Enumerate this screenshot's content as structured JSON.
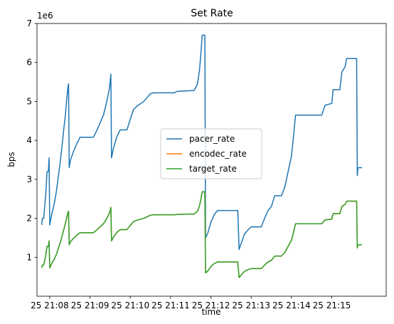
{
  "chart_data": {
    "type": "line",
    "title": "Set Rate",
    "xlabel": "time",
    "ylabel": "bps",
    "y_multiplier_label": "1e6",
    "ylim": [
      0,
      7
    ],
    "y_ticks": [
      1,
      2,
      3,
      4,
      5,
      6,
      7
    ],
    "y_tick_labels": [
      "1",
      "2",
      "3",
      "4",
      "5",
      "6",
      "7"
    ],
    "xlim": [
      "21:07:41",
      "21:16:21"
    ],
    "x_ticks": [
      "21:08",
      "21:09",
      "21:10",
      "21:11",
      "21:12",
      "21:13",
      "21:14",
      "21:15"
    ],
    "x_tick_labels": [
      "25 21:08",
      "25 21:09",
      "25 21:10",
      "25 21:11",
      "25 21:12",
      "25 21:13",
      "25 21:14",
      "25 21:15"
    ],
    "grid": false,
    "legend_position": "center",
    "series": [
      {
        "name": "pacer_rate",
        "color": "#1f77b4",
        "points": [
          [
            "21:07:48",
            1.83
          ],
          [
            "21:07:49",
            2.0
          ],
          [
            "21:07:51",
            2.0
          ],
          [
            "21:07:52",
            2.2
          ],
          [
            "21:07:54",
            2.6
          ],
          [
            "21:07:56",
            3.2
          ],
          [
            "21:07:58",
            3.2
          ],
          [
            "21:07:59",
            3.55
          ],
          [
            "21:08:00",
            1.83
          ],
          [
            "21:08:03",
            2.1
          ],
          [
            "21:08:07",
            2.4
          ],
          [
            "21:08:10",
            2.7
          ],
          [
            "21:08:13",
            3.1
          ],
          [
            "21:08:16",
            3.5
          ],
          [
            "21:08:18",
            3.8
          ],
          [
            "21:08:21",
            4.3
          ],
          [
            "21:08:23",
            4.6
          ],
          [
            "21:08:25",
            5.0
          ],
          [
            "21:08:27",
            5.35
          ],
          [
            "21:08:28",
            5.45
          ],
          [
            "21:08:29",
            3.3
          ],
          [
            "21:08:31",
            3.5
          ],
          [
            "21:08:35",
            3.7
          ],
          [
            "21:08:40",
            3.9
          ],
          [
            "21:08:45",
            4.08
          ],
          [
            "21:09:05",
            4.08
          ],
          [
            "21:09:10",
            4.25
          ],
          [
            "21:09:15",
            4.45
          ],
          [
            "21:09:20",
            4.65
          ],
          [
            "21:09:25",
            5.0
          ],
          [
            "21:09:29",
            5.35
          ],
          [
            "21:09:31",
            5.7
          ],
          [
            "21:09:32",
            3.55
          ],
          [
            "21:09:35",
            3.8
          ],
          [
            "21:09:40",
            4.1
          ],
          [
            "21:09:45",
            4.27
          ],
          [
            "21:09:55",
            4.27
          ],
          [
            "21:10:00",
            4.55
          ],
          [
            "21:10:05",
            4.8
          ],
          [
            "21:10:10",
            4.88
          ],
          [
            "21:10:20",
            5.0
          ],
          [
            "21:10:30",
            5.2
          ],
          [
            "21:10:35",
            5.22
          ],
          [
            "21:11:05",
            5.22
          ],
          [
            "21:11:10",
            5.26
          ],
          [
            "21:11:35",
            5.28
          ],
          [
            "21:11:40",
            5.45
          ],
          [
            "21:11:43",
            5.8
          ],
          [
            "21:11:45",
            6.2
          ],
          [
            "21:11:47",
            6.7
          ],
          [
            "21:11:51",
            6.7
          ],
          [
            "21:11:52",
            1.5
          ],
          [
            "21:11:55",
            1.6
          ],
          [
            "21:12:00",
            1.9
          ],
          [
            "21:12:05",
            2.1
          ],
          [
            "21:12:10",
            2.2
          ],
          [
            "21:12:40",
            2.2
          ],
          [
            "21:12:42",
            1.2
          ],
          [
            "21:12:45",
            1.35
          ],
          [
            "21:12:50",
            1.6
          ],
          [
            "21:12:55",
            1.7
          ],
          [
            "21:13:00",
            1.78
          ],
          [
            "21:13:15",
            1.78
          ],
          [
            "21:13:20",
            2.0
          ],
          [
            "21:13:25",
            2.2
          ],
          [
            "21:13:30",
            2.3
          ],
          [
            "21:13:35",
            2.58
          ],
          [
            "21:13:45",
            2.58
          ],
          [
            "21:13:50",
            2.8
          ],
          [
            "21:13:55",
            3.2
          ],
          [
            "21:14:00",
            3.6
          ],
          [
            "21:14:03",
            4.1
          ],
          [
            "21:14:06",
            4.65
          ],
          [
            "21:14:45",
            4.65
          ],
          [
            "21:14:50",
            4.9
          ],
          [
            "21:15:00",
            4.95
          ],
          [
            "21:15:02",
            5.3
          ],
          [
            "21:15:12",
            5.3
          ],
          [
            "21:15:15",
            5.75
          ],
          [
            "21:15:20",
            5.9
          ],
          [
            "21:15:22",
            6.1
          ],
          [
            "21:15:37",
            6.1
          ],
          [
            "21:15:38",
            3.1
          ],
          [
            "21:15:39",
            3.3
          ],
          [
            "21:15:45",
            3.3
          ]
        ]
      },
      {
        "name": "encodec_rate",
        "color": "#ff7f0e",
        "points": [
          [
            "21:07:48",
            0.73
          ],
          [
            "21:07:49",
            0.8
          ],
          [
            "21:07:51",
            0.8
          ],
          [
            "21:07:52",
            0.88
          ],
          [
            "21:07:54",
            1.04
          ],
          [
            "21:07:56",
            1.28
          ],
          [
            "21:07:58",
            1.28
          ],
          [
            "21:07:59",
            1.42
          ],
          [
            "21:08:00",
            0.73
          ],
          [
            "21:08:03",
            0.84
          ],
          [
            "21:08:07",
            0.96
          ],
          [
            "21:08:10",
            1.08
          ],
          [
            "21:08:13",
            1.24
          ],
          [
            "21:08:16",
            1.4
          ],
          [
            "21:08:18",
            1.52
          ],
          [
            "21:08:21",
            1.72
          ],
          [
            "21:08:23",
            1.84
          ],
          [
            "21:08:25",
            2.0
          ],
          [
            "21:08:27",
            2.14
          ],
          [
            "21:08:28",
            2.18
          ],
          [
            "21:08:29",
            1.32
          ],
          [
            "21:08:31",
            1.4
          ],
          [
            "21:08:35",
            1.48
          ],
          [
            "21:08:40",
            1.56
          ],
          [
            "21:08:45",
            1.63
          ],
          [
            "21:09:05",
            1.63
          ],
          [
            "21:09:10",
            1.7
          ],
          [
            "21:09:15",
            1.78
          ],
          [
            "21:09:20",
            1.86
          ],
          [
            "21:09:25",
            2.0
          ],
          [
            "21:09:29",
            2.14
          ],
          [
            "21:09:31",
            2.28
          ],
          [
            "21:09:32",
            1.42
          ],
          [
            "21:09:35",
            1.52
          ],
          [
            "21:09:40",
            1.64
          ],
          [
            "21:09:45",
            1.71
          ],
          [
            "21:09:55",
            1.71
          ],
          [
            "21:10:00",
            1.82
          ],
          [
            "21:10:05",
            1.92
          ],
          [
            "21:10:10",
            1.95
          ],
          [
            "21:10:20",
            2.0
          ],
          [
            "21:10:30",
            2.08
          ],
          [
            "21:10:35",
            2.09
          ],
          [
            "21:11:05",
            2.09
          ],
          [
            "21:11:10",
            2.1
          ],
          [
            "21:11:35",
            2.11
          ],
          [
            "21:11:40",
            2.18
          ],
          [
            "21:11:43",
            2.32
          ],
          [
            "21:11:45",
            2.48
          ],
          [
            "21:11:47",
            2.68
          ],
          [
            "21:11:51",
            2.68
          ],
          [
            "21:11:52",
            0.6
          ],
          [
            "21:11:55",
            0.64
          ],
          [
            "21:12:00",
            0.76
          ],
          [
            "21:12:05",
            0.84
          ],
          [
            "21:12:10",
            0.88
          ],
          [
            "21:12:40",
            0.88
          ],
          [
            "21:12:42",
            0.48
          ],
          [
            "21:12:45",
            0.54
          ],
          [
            "21:12:50",
            0.64
          ],
          [
            "21:12:55",
            0.68
          ],
          [
            "21:13:00",
            0.71
          ],
          [
            "21:13:15",
            0.71
          ],
          [
            "21:13:20",
            0.8
          ],
          [
            "21:13:25",
            0.88
          ],
          [
            "21:13:30",
            0.92
          ],
          [
            "21:13:35",
            1.03
          ],
          [
            "21:13:45",
            1.03
          ],
          [
            "21:13:50",
            1.12
          ],
          [
            "21:13:55",
            1.28
          ],
          [
            "21:14:00",
            1.44
          ],
          [
            "21:14:03",
            1.64
          ],
          [
            "21:14:06",
            1.86
          ],
          [
            "21:14:45",
            1.86
          ],
          [
            "21:14:50",
            1.96
          ],
          [
            "21:15:00",
            1.98
          ],
          [
            "21:15:02",
            2.12
          ],
          [
            "21:15:12",
            2.12
          ],
          [
            "21:15:15",
            2.3
          ],
          [
            "21:15:20",
            2.36
          ],
          [
            "21:15:22",
            2.44
          ],
          [
            "21:15:37",
            2.44
          ],
          [
            "21:15:38",
            1.24
          ],
          [
            "21:15:39",
            1.32
          ],
          [
            "21:15:45",
            1.32
          ]
        ]
      },
      {
        "name": "target_rate",
        "color": "#2ca02c",
        "points": [
          [
            "21:07:48",
            0.73
          ],
          [
            "21:07:49",
            0.8
          ],
          [
            "21:07:51",
            0.8
          ],
          [
            "21:07:52",
            0.88
          ],
          [
            "21:07:54",
            1.04
          ],
          [
            "21:07:56",
            1.28
          ],
          [
            "21:07:58",
            1.28
          ],
          [
            "21:07:59",
            1.42
          ],
          [
            "21:08:00",
            0.73
          ],
          [
            "21:08:03",
            0.84
          ],
          [
            "21:08:07",
            0.96
          ],
          [
            "21:08:10",
            1.08
          ],
          [
            "21:08:13",
            1.24
          ],
          [
            "21:08:16",
            1.4
          ],
          [
            "21:08:18",
            1.52
          ],
          [
            "21:08:21",
            1.72
          ],
          [
            "21:08:23",
            1.84
          ],
          [
            "21:08:25",
            2.0
          ],
          [
            "21:08:27",
            2.14
          ],
          [
            "21:08:28",
            2.18
          ],
          [
            "21:08:29",
            1.32
          ],
          [
            "21:08:31",
            1.4
          ],
          [
            "21:08:35",
            1.48
          ],
          [
            "21:08:40",
            1.56
          ],
          [
            "21:08:45",
            1.63
          ],
          [
            "21:09:05",
            1.63
          ],
          [
            "21:09:10",
            1.7
          ],
          [
            "21:09:15",
            1.78
          ],
          [
            "21:09:20",
            1.86
          ],
          [
            "21:09:25",
            2.0
          ],
          [
            "21:09:29",
            2.14
          ],
          [
            "21:09:31",
            2.28
          ],
          [
            "21:09:32",
            1.42
          ],
          [
            "21:09:35",
            1.52
          ],
          [
            "21:09:40",
            1.64
          ],
          [
            "21:09:45",
            1.71
          ],
          [
            "21:09:55",
            1.71
          ],
          [
            "21:10:00",
            1.82
          ],
          [
            "21:10:05",
            1.92
          ],
          [
            "21:10:10",
            1.95
          ],
          [
            "21:10:20",
            2.0
          ],
          [
            "21:10:30",
            2.08
          ],
          [
            "21:10:35",
            2.09
          ],
          [
            "21:11:05",
            2.09
          ],
          [
            "21:11:10",
            2.1
          ],
          [
            "21:11:35",
            2.11
          ],
          [
            "21:11:40",
            2.18
          ],
          [
            "21:11:43",
            2.32
          ],
          [
            "21:11:45",
            2.48
          ],
          [
            "21:11:47",
            2.68
          ],
          [
            "21:11:51",
            2.68
          ],
          [
            "21:11:52",
            0.6
          ],
          [
            "21:11:55",
            0.64
          ],
          [
            "21:12:00",
            0.76
          ],
          [
            "21:12:05",
            0.84
          ],
          [
            "21:12:10",
            0.88
          ],
          [
            "21:12:40",
            0.88
          ],
          [
            "21:12:42",
            0.48
          ],
          [
            "21:12:45",
            0.54
          ],
          [
            "21:12:50",
            0.64
          ],
          [
            "21:12:55",
            0.68
          ],
          [
            "21:13:00",
            0.71
          ],
          [
            "21:13:15",
            0.71
          ],
          [
            "21:13:20",
            0.8
          ],
          [
            "21:13:25",
            0.88
          ],
          [
            "21:13:30",
            0.92
          ],
          [
            "21:13:35",
            1.03
          ],
          [
            "21:13:45",
            1.03
          ],
          [
            "21:13:50",
            1.12
          ],
          [
            "21:13:55",
            1.28
          ],
          [
            "21:14:00",
            1.44
          ],
          [
            "21:14:03",
            1.64
          ],
          [
            "21:14:06",
            1.86
          ],
          [
            "21:14:45",
            1.86
          ],
          [
            "21:14:50",
            1.96
          ],
          [
            "21:15:00",
            1.98
          ],
          [
            "21:15:02",
            2.12
          ],
          [
            "21:15:12",
            2.12
          ],
          [
            "21:15:15",
            2.3
          ],
          [
            "21:15:20",
            2.36
          ],
          [
            "21:15:22",
            2.44
          ],
          [
            "21:15:37",
            2.44
          ],
          [
            "21:15:38",
            1.24
          ],
          [
            "21:15:39",
            1.32
          ],
          [
            "21:15:45",
            1.32
          ]
        ]
      }
    ]
  }
}
